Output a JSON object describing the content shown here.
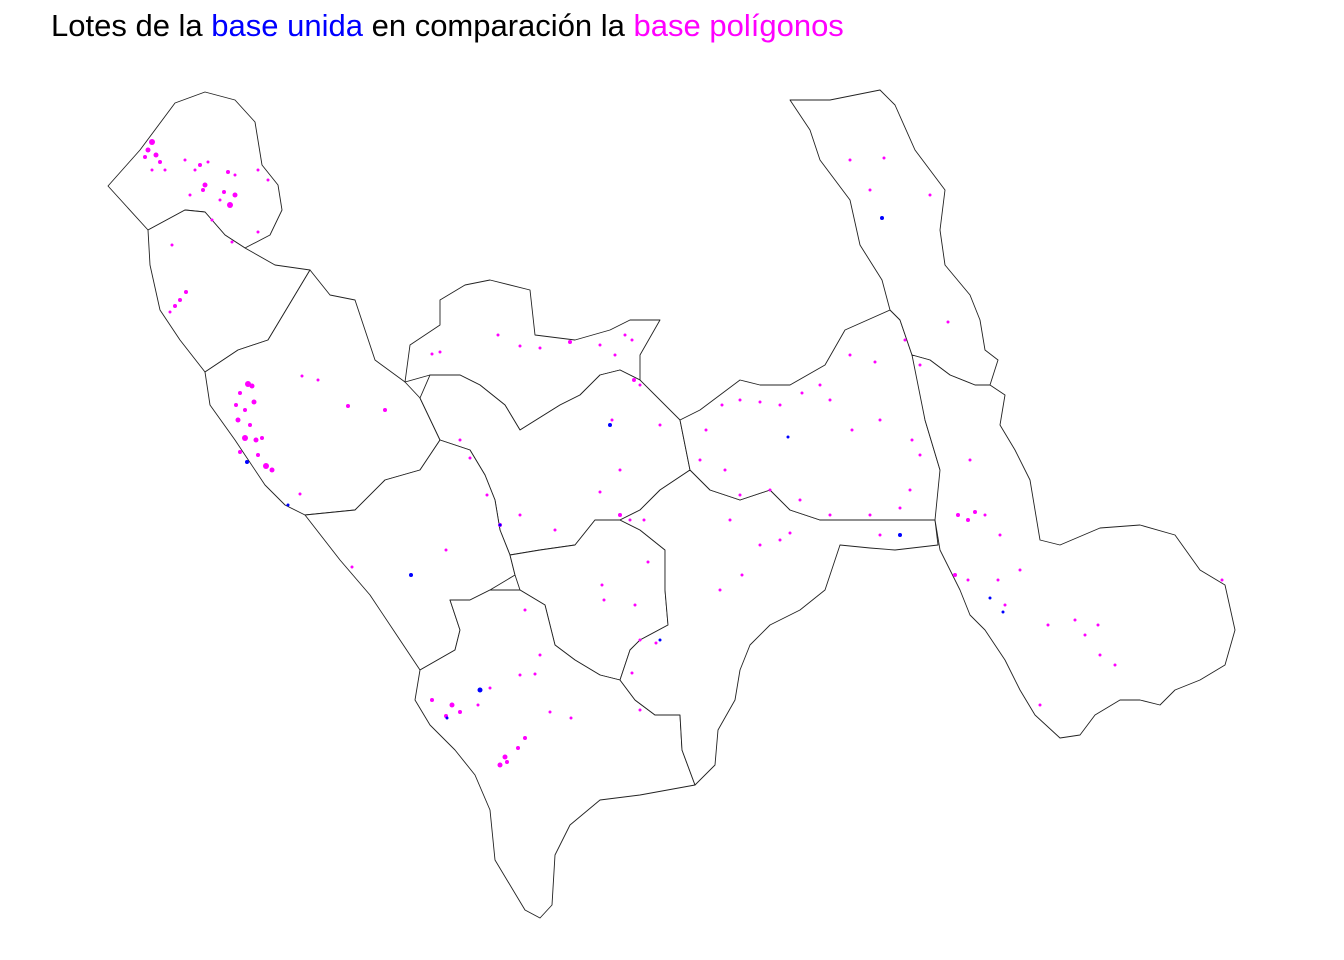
{
  "title": {
    "part1": "Lotes de la ",
    "highlight1": "base unida",
    "part2": " en comparación la ",
    "highlight2": "base polígonos"
  },
  "colors": {
    "text": "#000000",
    "base_unida": "#0000ff",
    "base_poligonos": "#ff00ff",
    "boundary": "#222222",
    "background": "#ffffff"
  }
}
